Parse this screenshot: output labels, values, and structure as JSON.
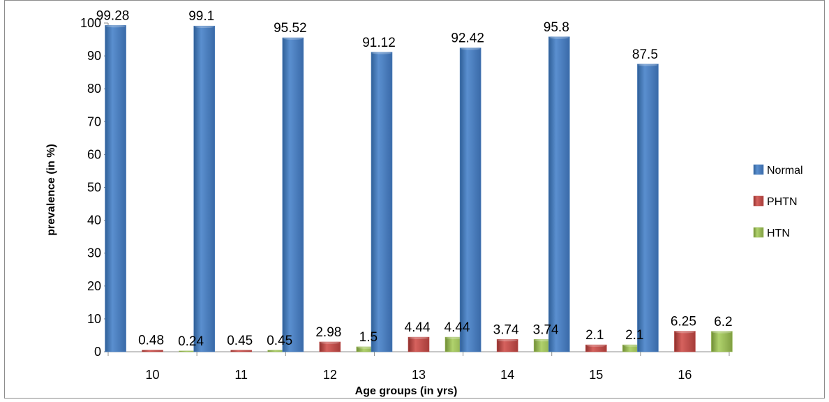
{
  "chart_data": {
    "type": "bar",
    "title": "",
    "xlabel": "Age groups (in yrs)",
    "ylabel": "prevalence (in %)",
    "ylim": [
      0,
      100
    ],
    "yticks": [
      "0",
      "10",
      "20",
      "30",
      "40",
      "50",
      "60",
      "70",
      "80",
      "90",
      "100"
    ],
    "categories": [
      "10",
      "11",
      "12",
      "13",
      "14",
      "15",
      "16"
    ],
    "series": [
      {
        "name": "Normal",
        "color": "#4f81bd",
        "values": [
          99.28,
          99.1,
          95.52,
          91.12,
          92.42,
          95.8,
          87.5
        ],
        "labels": [
          "99.28",
          "99.1",
          "95.52",
          "91.12",
          "92.42",
          "95.8",
          "87.5"
        ]
      },
      {
        "name": "PHTN",
        "color": "#c0504d",
        "values": [
          0.48,
          0.45,
          2.98,
          4.44,
          3.74,
          2.1,
          6.25
        ],
        "labels": [
          "0.48",
          "0.45",
          "2.98",
          "4.44",
          "3.74",
          "2.1",
          "6.25"
        ]
      },
      {
        "name": "HTN",
        "color": "#9bbb59",
        "values": [
          0.24,
          0.45,
          1.5,
          4.44,
          3.74,
          2.1,
          6.2
        ],
        "labels": [
          "0.24",
          "0.45",
          "1.5",
          "4.44",
          "3.74",
          "2.1",
          "6.2"
        ]
      }
    ],
    "grid": false,
    "legend_position": "right"
  }
}
